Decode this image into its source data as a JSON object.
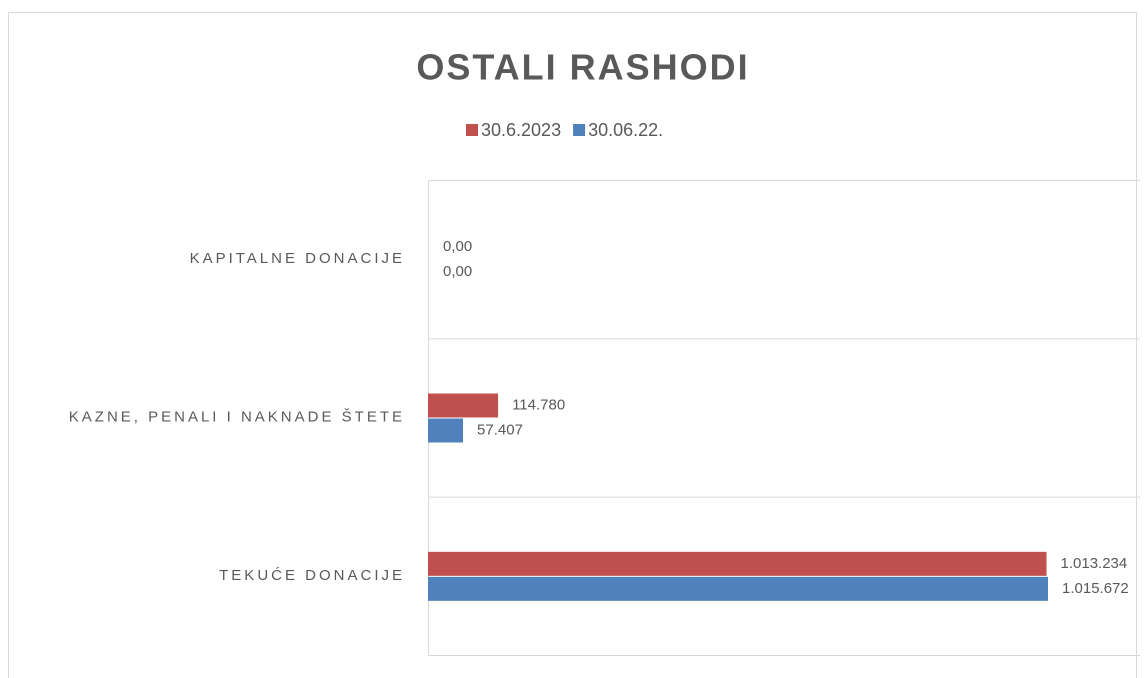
{
  "chart_data": {
    "type": "hbar",
    "title": "OSTALI RASHODI",
    "categories": [
      "KAPITALNE DONACIJE",
      "KAZNE, PENALI I NAKNADE ŠTETE",
      "TEKUĆE DONACIJE"
    ],
    "series": [
      {
        "name": "30.6.2023",
        "color": "#c0504d",
        "values": [
          0,
          114780,
          1013234
        ],
        "value_labels": [
          "0,00",
          "114.780",
          "1.013.234"
        ]
      },
      {
        "name": "30.06.22.",
        "color": "#4f81bd",
        "values": [
          0,
          57407,
          1015672
        ],
        "value_labels": [
          "0,00",
          "57.407",
          "1.015.672"
        ]
      }
    ],
    "xlim": [
      0,
      1150000
    ],
    "legend": "top"
  }
}
